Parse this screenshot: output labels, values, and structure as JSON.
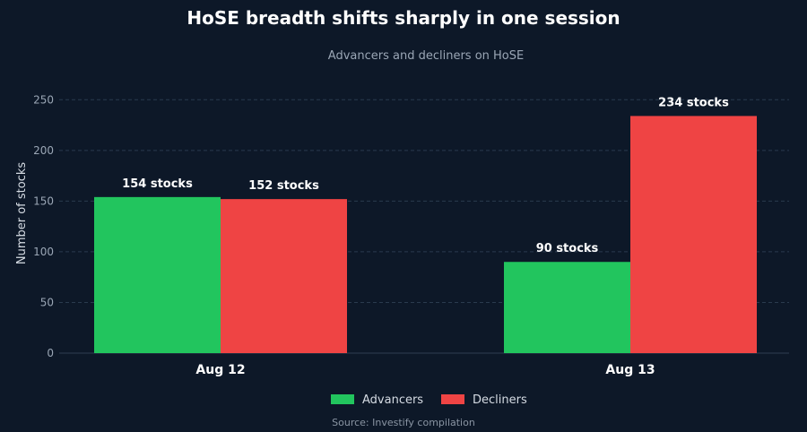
{
  "chart_data": {
    "type": "bar",
    "title": "HoSE breadth shifts sharply in one session",
    "subtitle": "Advancers and decliners on HoSE",
    "ylabel": "Number of stocks",
    "xlabel": "",
    "categories": [
      "Aug 12",
      "Aug 13"
    ],
    "series": [
      {
        "name": "Advancers",
        "color": "#22c55e",
        "values": [
          154,
          90
        ],
        "labels": [
          "154 stocks",
          "90 stocks"
        ]
      },
      {
        "name": "Decliners",
        "color": "#ef4444",
        "values": [
          152,
          234
        ],
        "labels": [
          "152 stocks",
          "234 stocks"
        ]
      }
    ],
    "ylim": [
      0,
      260
    ],
    "yticks": [
      0,
      50,
      100,
      150,
      200,
      250
    ],
    "grid": true,
    "legend_position": "bottom",
    "source": "Source: Investify compilation"
  }
}
